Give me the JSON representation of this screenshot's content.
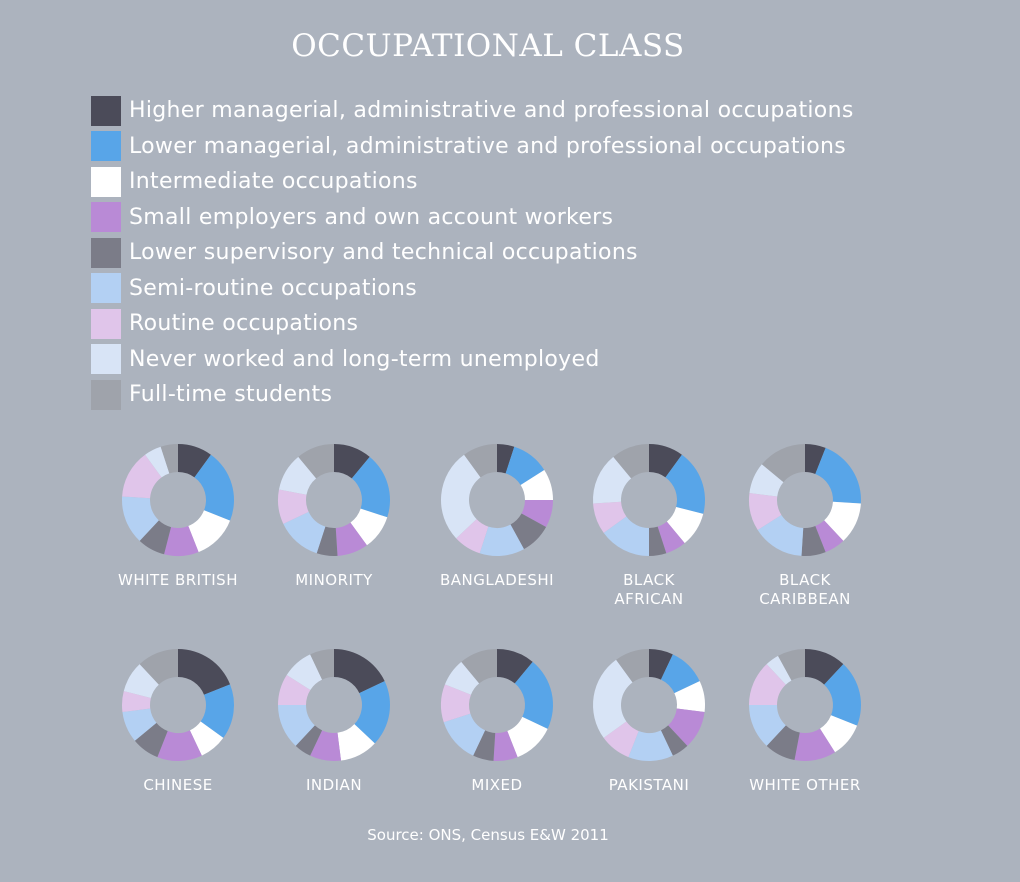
{
  "title": "OCCUPATIONAL CLASS",
  "source": "Source: ONS, Census E&W 2011",
  "chart_data": {
    "type": "pie",
    "style": "donut",
    "categories": [
      {
        "name": "Higher managerial, administrative and professional occupations",
        "color": "#4b4b59"
      },
      {
        "name": "Lower managerial, administrative and professional occupations",
        "color": "#58a5e8"
      },
      {
        "name": "Intermediate occupations",
        "color": "#ffffff"
      },
      {
        "name": "Small employers and own account workers",
        "color": "#b98ad6"
      },
      {
        "name": "Lower supervisory and technical occupations",
        "color": "#7b7c88"
      },
      {
        "name": "Semi-routine occupations",
        "color": "#b3d0f3"
      },
      {
        "name": "Routine occupations",
        "color": "#e0c5ea"
      },
      {
        "name": "Never worked and long-term unemployed",
        "color": "#d8e4f6"
      },
      {
        "name": "Full-time students",
        "color": "#9fa3ab"
      }
    ],
    "series": [
      {
        "name": "WHITE BRITISH",
        "values": [
          10,
          21,
          13,
          10,
          8,
          14,
          14,
          5,
          5
        ]
      },
      {
        "name": "MINORITY",
        "values": [
          11,
          19,
          10,
          9,
          6,
          13,
          10,
          11,
          11
        ]
      },
      {
        "name": "BANGLADESHI",
        "values": [
          5,
          11,
          9,
          8,
          9,
          13,
          8,
          27,
          10
        ]
      },
      {
        "name": "BLACK AFRICAN",
        "values": [
          10,
          19,
          10,
          6,
          5,
          15,
          9,
          15,
          11
        ]
      },
      {
        "name": "BLACK CARIBBEAN",
        "values": [
          6,
          20,
          12,
          6,
          7,
          15,
          11,
          9,
          14
        ]
      },
      {
        "name": "CHINESE",
        "values": [
          19,
          16,
          8,
          13,
          8,
          9,
          6,
          9,
          12
        ]
      },
      {
        "name": "INDIAN",
        "values": [
          18,
          19,
          11,
          9,
          5,
          13,
          9,
          9,
          7
        ]
      },
      {
        "name": "MIXED",
        "values": [
          11,
          21,
          12,
          7,
          6,
          13,
          11,
          8,
          11
        ]
      },
      {
        "name": "PAKISTANI",
        "values": [
          7,
          11,
          9,
          11,
          5,
          13,
          9,
          25,
          10
        ]
      },
      {
        "name": "WHITE OTHER",
        "values": [
          12,
          19,
          10,
          12,
          9,
          13,
          13,
          4,
          8
        ]
      }
    ]
  }
}
